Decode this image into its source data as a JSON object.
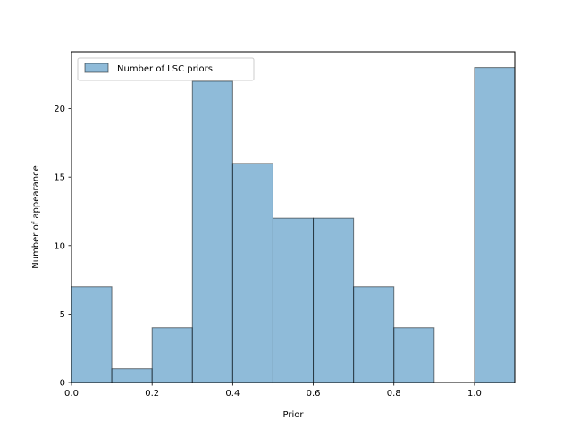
{
  "chart_data": {
    "type": "bar",
    "subtype": "histogram",
    "bin_edges": [
      0.0,
      0.1,
      0.2,
      0.3,
      0.4,
      0.5,
      0.6,
      0.7,
      0.8,
      0.9,
      1.0,
      1.1
    ],
    "series": [
      {
        "name": "Number of LSC priors",
        "values": [
          7,
          1,
          4,
          22,
          16,
          12,
          12,
          7,
          4,
          0,
          23
        ]
      }
    ],
    "xlabel": "Prior",
    "ylabel": "Number of appearance",
    "xlim": [
      0.0,
      1.1
    ],
    "ylim": [
      0,
      24.15
    ],
    "xticks": [
      0.0,
      0.2,
      0.4,
      0.6,
      0.8,
      1.0
    ],
    "xtick_labels": [
      "0.0",
      "0.2",
      "0.4",
      "0.6",
      "0.8",
      "1.0"
    ],
    "yticks": [
      0,
      5,
      10,
      15,
      20
    ],
    "ytick_labels": [
      "0",
      "5",
      "10",
      "15",
      "20"
    ],
    "grid": false,
    "legend_position": "upper-left",
    "colors": {
      "bar_fill": "#1f77b4",
      "bar_fill_opacity": 0.5,
      "bar_edge": "#000000"
    }
  }
}
